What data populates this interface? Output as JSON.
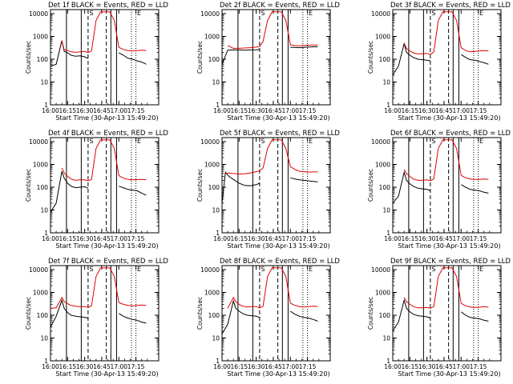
{
  "figure": {
    "background": "#ffffff",
    "axis_color": "#000000",
    "events_color": "#000000",
    "lld_color": "#e00000",
    "xtick_labels": [
      "16:00",
      "16:15",
      "16:30",
      "16:45",
      "17:00",
      "17:15"
    ],
    "ytick_labels": [
      "1",
      "10",
      "100",
      "1000",
      "10000"
    ]
  },
  "chart_data": [
    {
      "type": "line",
      "detector": "1f",
      "title": "Det 1f BLACK = Events, RED = LLD",
      "xlabel": "Start Time (30-Apr-13 15:49:20)",
      "ylabel": "Counts/sec",
      "x_minutes": [
        0,
        5,
        10,
        12,
        15,
        18,
        22,
        26,
        30,
        33,
        36,
        40,
        44,
        48,
        52,
        56,
        60,
        64,
        68,
        72,
        76,
        80,
        84
      ],
      "events": [
        50,
        60,
        650,
        220,
        190,
        150,
        135,
        140,
        128,
        108,
        null,
        null,
        null,
        null,
        null,
        null,
        190,
        150,
        110,
        100,
        85,
        75,
        60
      ],
      "lld": [
        null,
        null,
        650,
        260,
        240,
        210,
        200,
        210,
        220,
        195,
        230,
        5000,
        12000,
        12000,
        12000,
        5000,
        330,
        270,
        240,
        230,
        240,
        250,
        240
      ],
      "vlines_solid": [
        14,
        27,
        53,
        58
      ],
      "vlines_dashed": [
        33,
        49
      ],
      "vlines_dotted": [
        71,
        75
      ],
      "markers": [
        "S",
        "E"
      ]
    },
    {
      "type": "line",
      "detector": "2f",
      "title": "Det 2f BLACK = Events, RED = LLD",
      "xlabel": "Start Time (30-Apr-13 15:49:20)",
      "ylabel": "Counts/sec",
      "x_minutes": [
        0,
        5,
        10,
        15,
        20,
        25,
        30,
        33,
        36,
        40,
        44,
        48,
        52,
        56,
        60,
        64,
        68,
        72,
        76,
        80,
        84
      ],
      "events": [
        60,
        250,
        260,
        255,
        250,
        255,
        260,
        270,
        null,
        null,
        null,
        null,
        null,
        null,
        330,
        330,
        320,
        330,
        340,
        350,
        350
      ],
      "lld": [
        null,
        400,
        300,
        300,
        310,
        320,
        340,
        360,
        600,
        5000,
        12000,
        12000,
        12000,
        5000,
        430,
        400,
        390,
        400,
        410,
        420,
        420
      ],
      "vlines_solid": [
        14,
        27,
        53,
        58
      ],
      "vlines_dashed": [
        33,
        49
      ],
      "vlines_dotted": [
        71,
        75
      ],
      "markers": [
        "S",
        "E"
      ]
    },
    {
      "type": "line",
      "detector": "3f",
      "title": "Det 3f BLACK = Events, RED = LLD",
      "xlabel": "Start Time (30-Apr-13 15:49:20)",
      "ylabel": "Counts/sec",
      "x_minutes": [
        0,
        5,
        10,
        12,
        15,
        18,
        22,
        26,
        30,
        33,
        36,
        40,
        44,
        48,
        52,
        56,
        60,
        64,
        68,
        72,
        76,
        80,
        84
      ],
      "events": [
        20,
        50,
        480,
        200,
        150,
        120,
        100,
        95,
        90,
        85,
        null,
        null,
        null,
        null,
        null,
        null,
        160,
        120,
        95,
        90,
        80,
        70,
        60
      ],
      "lld": [
        null,
        null,
        500,
        300,
        230,
        190,
        170,
        175,
        180,
        160,
        210,
        5000,
        12000,
        12000,
        12000,
        5000,
        320,
        240,
        210,
        220,
        230,
        240,
        230
      ],
      "vlines_solid": [
        14,
        27,
        53,
        58
      ],
      "vlines_dashed": [
        33,
        49
      ],
      "vlines_dotted": [
        71,
        75
      ],
      "markers": [
        "S",
        "E"
      ]
    },
    {
      "type": "line",
      "detector": "4f",
      "title": "Det 4f BLACK = Events, RED = LLD",
      "xlabel": "Start Time (30-Apr-13 15:49:20)",
      "ylabel": "Counts/sec",
      "x_minutes": [
        0,
        5,
        10,
        12,
        15,
        18,
        22,
        26,
        30,
        33,
        36,
        40,
        44,
        48,
        52,
        56,
        60,
        64,
        68,
        72,
        76,
        80,
        84
      ],
      "events": [
        8,
        20,
        500,
        250,
        150,
        110,
        95,
        100,
        105,
        90,
        null,
        null,
        null,
        null,
        null,
        null,
        110,
        95,
        80,
        75,
        70,
        55,
        45
      ],
      "lld": [
        null,
        null,
        700,
        420,
        300,
        230,
        200,
        210,
        210,
        190,
        220,
        5000,
        12000,
        12000,
        12000,
        5000,
        320,
        250,
        220,
        210,
        215,
        220,
        210
      ],
      "vlines_solid": [
        14,
        27,
        53,
        58
      ],
      "vlines_dashed": [
        33,
        49
      ],
      "vlines_dotted": [
        71,
        75
      ],
      "markers": [
        "S",
        "E"
      ]
    },
    {
      "type": "line",
      "detector": "5f",
      "title": "Det 5f BLACK = Events, RED = LLD",
      "xlabel": "Start Time (30-Apr-13 15:49:20)",
      "ylabel": "Counts/sec",
      "x_minutes": [
        0,
        3,
        6,
        10,
        15,
        20,
        25,
        30,
        33,
        36,
        40,
        44,
        48,
        52,
        56,
        60,
        64,
        68,
        72,
        76,
        80,
        84
      ],
      "events": [
        20,
        450,
        300,
        220,
        150,
        120,
        115,
        130,
        150,
        null,
        null,
        null,
        null,
        null,
        null,
        260,
        230,
        210,
        200,
        190,
        180,
        170
      ],
      "lld": [
        null,
        400,
        420,
        400,
        380,
        390,
        420,
        480,
        520,
        700,
        5000,
        12000,
        12000,
        12000,
        5000,
        800,
        600,
        500,
        480,
        460,
        470,
        470
      ],
      "vlines_solid": [
        14,
        27,
        53,
        58
      ],
      "vlines_dashed": [
        33,
        49
      ],
      "vlines_dotted": [
        71,
        75
      ],
      "markers": [
        "S",
        "E"
      ]
    },
    {
      "type": "line",
      "detector": "6f",
      "title": "Det 6f BLACK = Events, RED = LLD",
      "xlabel": "Start Time (30-Apr-13 15:49:20)",
      "ylabel": "Counts/sec",
      "x_minutes": [
        0,
        5,
        10,
        12,
        15,
        18,
        22,
        26,
        30,
        33,
        36,
        40,
        44,
        48,
        52,
        56,
        60,
        64,
        68,
        72,
        76,
        80,
        84
      ],
      "events": [
        20,
        40,
        450,
        200,
        140,
        110,
        90,
        85,
        80,
        70,
        null,
        null,
        null,
        null,
        null,
        null,
        130,
        100,
        80,
        75,
        70,
        60,
        55
      ],
      "lld": [
        null,
        null,
        600,
        400,
        300,
        230,
        200,
        200,
        210,
        190,
        230,
        5000,
        12000,
        12000,
        12000,
        5000,
        330,
        260,
        230,
        220,
        220,
        230,
        220
      ],
      "vlines_solid": [
        14,
        27,
        53,
        58
      ],
      "vlines_dashed": [
        33,
        49
      ],
      "vlines_dotted": [
        71,
        75
      ],
      "markers": [
        "S",
        "E"
      ]
    },
    {
      "type": "line",
      "detector": "7f",
      "title": "Det 7f BLACK = Events, RED = LLD",
      "xlabel": "Start Time (30-Apr-13 15:49:20)",
      "ylabel": "Counts/sec",
      "x_minutes": [
        0,
        5,
        10,
        12,
        15,
        18,
        22,
        26,
        30,
        33,
        36,
        40,
        44,
        48,
        52,
        56,
        60,
        64,
        68,
        72,
        76,
        80,
        84
      ],
      "events": [
        30,
        90,
        450,
        200,
        130,
        100,
        90,
        85,
        80,
        75,
        null,
        null,
        null,
        null,
        null,
        null,
        120,
        90,
        75,
        65,
        60,
        50,
        45
      ],
      "lld": [
        200,
        210,
        600,
        400,
        320,
        270,
        250,
        240,
        240,
        220,
        260,
        5000,
        12000,
        12000,
        12000,
        5000,
        360,
        300,
        270,
        260,
        270,
        280,
        270
      ],
      "vlines_solid": [
        14,
        27,
        53,
        58
      ],
      "vlines_dashed": [
        33,
        49
      ],
      "vlines_dotted": [
        71,
        75
      ],
      "markers": [
        "S",
        "E"
      ]
    },
    {
      "type": "line",
      "detector": "8f",
      "title": "Det 8f BLACK = Events, RED = LLD",
      "xlabel": "Start Time (30-Apr-13 15:49:20)",
      "ylabel": "Counts/sec",
      "x_minutes": [
        0,
        5,
        10,
        12,
        15,
        18,
        22,
        26,
        30,
        33,
        36,
        40,
        44,
        48,
        52,
        56,
        60,
        64,
        68,
        72,
        76,
        80,
        84
      ],
      "events": [
        15,
        40,
        420,
        200,
        150,
        120,
        100,
        95,
        90,
        80,
        null,
        null,
        null,
        null,
        null,
        null,
        150,
        110,
        90,
        80,
        75,
        65,
        55
      ],
      "lld": [
        null,
        200,
        600,
        400,
        300,
        250,
        230,
        240,
        240,
        210,
        250,
        5000,
        12000,
        12000,
        12000,
        5000,
        340,
        270,
        240,
        230,
        240,
        250,
        240
      ],
      "vlines_solid": [
        14,
        27,
        53,
        58
      ],
      "vlines_dashed": [
        33,
        49
      ],
      "vlines_dotted": [
        71,
        75
      ],
      "markers": [
        "S",
        "E"
      ]
    },
    {
      "type": "line",
      "detector": "9f",
      "title": "Det 9f BLACK = Events, RED = LLD",
      "xlabel": "Start Time (30-Apr-13 15:49:20)",
      "ylabel": "Counts/sec",
      "x_minutes": [
        0,
        5,
        10,
        12,
        15,
        18,
        22,
        26,
        30,
        33,
        36,
        40,
        44,
        48,
        52,
        56,
        60,
        64,
        68,
        72,
        76,
        80,
        84
      ],
      "events": [
        20,
        50,
        450,
        200,
        140,
        110,
        95,
        90,
        85,
        75,
        null,
        null,
        null,
        null,
        null,
        null,
        140,
        100,
        80,
        75,
        70,
        60,
        55
      ],
      "lld": [
        null,
        null,
        600,
        400,
        300,
        240,
        210,
        210,
        220,
        200,
        240,
        5000,
        12000,
        12000,
        12000,
        5000,
        330,
        260,
        230,
        220,
        225,
        235,
        225
      ],
      "vlines_solid": [
        14,
        27,
        53,
        58
      ],
      "vlines_dashed": [
        33,
        49
      ],
      "vlines_dotted": [
        71,
        75
      ],
      "markers": [
        "S",
        "E"
      ]
    }
  ]
}
